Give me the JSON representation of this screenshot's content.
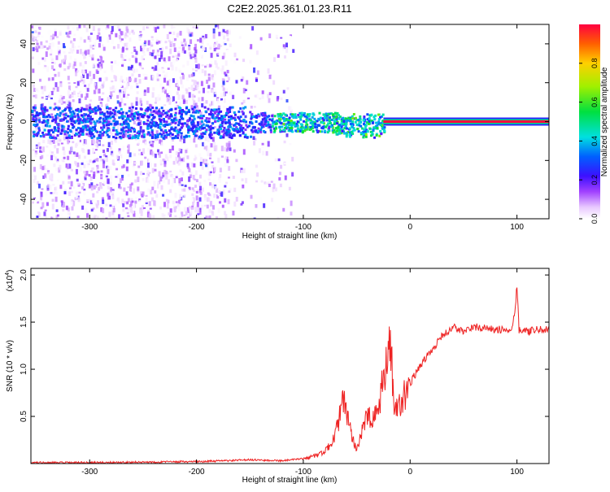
{
  "title": "C2E2.2025.361.01.23.R11",
  "colors": {
    "background": "#ffffff",
    "axis": "#000000",
    "snr_line": "#ee2222"
  },
  "chart_data": [
    {
      "type": "heatmap",
      "xlabel": "Height of straight line (km)",
      "ylabel": "Frequency (Hz)",
      "xlim": [
        -355,
        130
      ],
      "ylim": [
        -50,
        50
      ],
      "x_ticks": [
        -300,
        -200,
        -100,
        0,
        100
      ],
      "y_ticks": [
        -40,
        -20,
        0,
        20,
        40
      ],
      "colorbar": {
        "label": "Normalized spectral amplitude",
        "range": [
          0,
          1
        ],
        "ticks": [
          "0.0",
          "0.2",
          "0.4",
          "0.6",
          "0.8"
        ],
        "colormap": "rainbow (white-violet-blue-cyan-green-yellow-red)"
      },
      "features": {
        "noisy_region_x": [
          -355,
          -170
        ],
        "signal_band_center_hz": 0,
        "strong_line_start_x": -25,
        "strong_line_amplitude": 1.0
      },
      "grid": false
    },
    {
      "type": "line",
      "xlabel": "Height of straight line (km)",
      "ylabel": "SNR (10 * v/v)",
      "y_scale_note": "(x10",
      "y_scale_exp": "4",
      "xlim": [
        -355,
        130
      ],
      "ylim": [
        0,
        2.07
      ],
      "x_ticks": [
        -300,
        -200,
        -100,
        0,
        100
      ],
      "y_ticks": [
        "0.5",
        "1.0",
        "1.5",
        "2.0"
      ],
      "series": [
        {
          "x": [
            -355,
            -300,
            -250,
            -200,
            -170,
            -150,
            -120,
            -100,
            -90,
            -80,
            -70,
            -65,
            -62,
            -60,
            -55,
            -50,
            -45,
            -40,
            -35,
            -30,
            -25,
            -20,
            -18,
            -15,
            -10,
            -5,
            0,
            10,
            20,
            30,
            40,
            50,
            60,
            80,
            95,
            98,
            100,
            102,
            110,
            120,
            130
          ],
          "y": [
            0.01,
            0.01,
            0.015,
            0.02,
            0.03,
            0.04,
            0.03,
            0.05,
            0.08,
            0.12,
            0.3,
            0.55,
            0.7,
            0.55,
            0.3,
            0.15,
            0.35,
            0.5,
            0.45,
            0.55,
            0.9,
            1.15,
            1.3,
            0.6,
            0.6,
            0.75,
            0.85,
            1.05,
            1.2,
            1.35,
            1.45,
            1.4,
            1.45,
            1.42,
            1.42,
            1.6,
            1.9,
            1.42,
            1.4,
            1.42,
            1.42
          ]
        }
      ],
      "grid": false
    }
  ]
}
